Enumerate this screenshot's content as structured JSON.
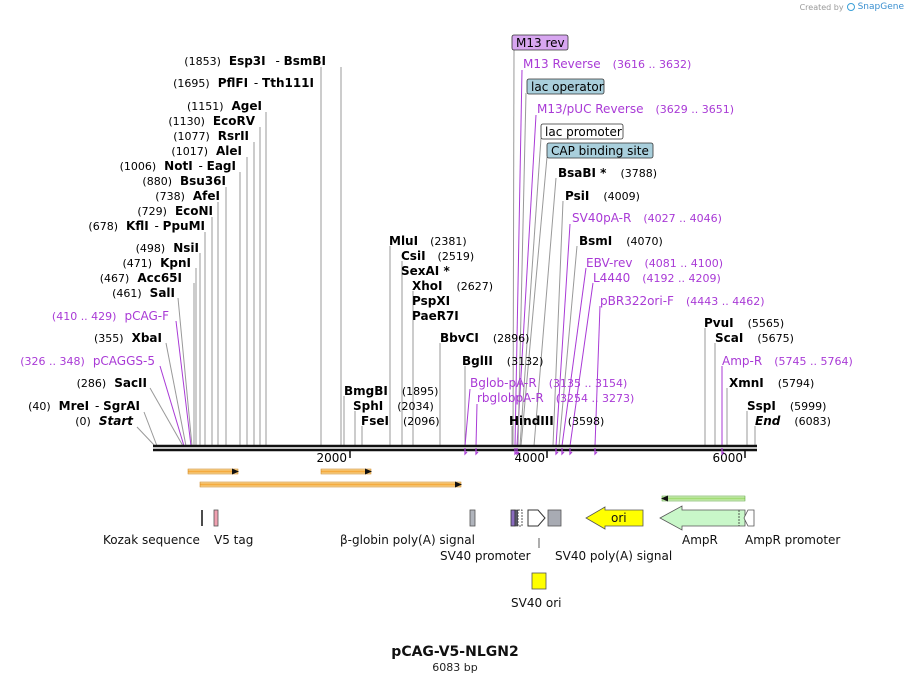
{
  "credit": {
    "prefix": "Created by",
    "brand": "SnapGene"
  },
  "plasmid": {
    "name": "pCAG-V5-NLGN2",
    "length_label": "6083 bp",
    "length": 6083
  },
  "ruler": {
    "ticks": [
      {
        "label": "2000",
        "bp": 2000
      },
      {
        "label": "4000",
        "bp": 4000
      },
      {
        "label": "6000",
        "bp": 6000
      }
    ]
  },
  "sites_left": [
    {
      "pos_label": "(1853)",
      "names": [
        "Esp3I",
        "BsmBI"
      ],
      "bp": 1853
    },
    {
      "pos_label": "(1695)",
      "names": [
        "PflFI",
        "Tth111I"
      ],
      "bp": 1695
    },
    {
      "pos_label": "(1151)",
      "names": [
        "AgeI"
      ],
      "bp": 1151
    },
    {
      "pos_label": "(1130)",
      "names": [
        "EcoRV"
      ],
      "bp": 1130
    },
    {
      "pos_label": "(1077)",
      "names": [
        "RsrII"
      ],
      "bp": 1077
    },
    {
      "pos_label": "(1017)",
      "names": [
        "AleI"
      ],
      "bp": 1017
    },
    {
      "pos_label": "(1006)",
      "names": [
        "NotI",
        "EagI"
      ],
      "bp": 1006
    },
    {
      "pos_label": "(880)",
      "names": [
        "Bsu36I"
      ],
      "bp": 880
    },
    {
      "pos_label": "(738)",
      "names": [
        "AfeI"
      ],
      "bp": 738
    },
    {
      "pos_label": "(729)",
      "names": [
        "EcoNI"
      ],
      "bp": 729
    },
    {
      "pos_label": "(678)",
      "names": [
        "KflI",
        "PpuMI"
      ],
      "bp": 678
    },
    {
      "pos_label": "(498)",
      "names": [
        "NsiI"
      ],
      "bp": 498
    },
    {
      "pos_label": "(471)",
      "names": [
        "KpnI"
      ],
      "bp": 471
    },
    {
      "pos_label": "(467)",
      "names": [
        "Acc65I"
      ],
      "bp": 467
    },
    {
      "pos_label": "(461)",
      "names": [
        "SalI"
      ],
      "bp": 461
    },
    {
      "pos_label": "(355)",
      "names": [
        "XbaI"
      ],
      "bp": 355
    },
    {
      "pos_label": "(286)",
      "names": [
        "SacII"
      ],
      "bp": 286
    },
    {
      "pos_label": "(40)",
      "names": [
        "MreI",
        "SgrAI"
      ],
      "bp": 40
    },
    {
      "pos_label": "(0)",
      "names": [
        "Start"
      ],
      "bp": 0,
      "italic": true
    }
  ],
  "primers_left": [
    {
      "name": "pCAG-F",
      "range": "(410 .. 429)",
      "bp": 410
    },
    {
      "name": "pCAGGS-5",
      "range": "(326 .. 348)",
      "bp": 326
    }
  ],
  "sites_mid": [
    {
      "names": [
        "MluI"
      ],
      "pos_label": "(2381)",
      "bp": 2381
    },
    {
      "names": [
        "CsiI"
      ],
      "pos_label": "(2519)",
      "bp": 2519
    },
    {
      "names": [
        "SexAI *"
      ],
      "pos_label": "",
      "bp": 2519
    },
    {
      "names": [
        "XhoI"
      ],
      "pos_label": "(2627)",
      "bp": 2627
    },
    {
      "names": [
        "PspXI"
      ],
      "pos_label": "",
      "bp": 2627
    },
    {
      "names": [
        "PaeR7I"
      ],
      "pos_label": "",
      "bp": 2627
    },
    {
      "names": [
        "BbvCI"
      ],
      "pos_label": "(2896)",
      "bp": 2896
    },
    {
      "names": [
        "BglII"
      ],
      "pos_label": "(3132)",
      "bp": 3132
    },
    {
      "names": [
        "BmgBI"
      ],
      "pos_label": "(1895)",
      "bp": 1895
    },
    {
      "names": [
        "SphI"
      ],
      "pos_label": "(2034)",
      "bp": 2034
    },
    {
      "names": [
        "FseI"
      ],
      "pos_label": "(2096)",
      "bp": 2096
    },
    {
      "names": [
        "HindIII"
      ],
      "pos_label": "(3598)",
      "bp": 3598
    }
  ],
  "tagged_features": [
    {
      "label": "M13 rev",
      "style": "purple"
    },
    {
      "label": "lac operator",
      "style": "blue"
    },
    {
      "label": "lac promoter",
      "style": "white"
    },
    {
      "label": "CAP binding site",
      "style": "blue"
    }
  ],
  "primers_right": [
    {
      "name": "M13 Reverse",
      "range": "(3616 .. 3632)",
      "bp": 3616
    },
    {
      "name": "M13/pUC Reverse",
      "range": "(3629 .. 3651)",
      "bp": 3629
    },
    {
      "name": "SV40pA-R",
      "range": "(4027 .. 4046)",
      "bp": 4027
    },
    {
      "name": "EBV-rev",
      "range": "(4081 .. 4100)",
      "bp": 4081
    },
    {
      "name": "L4440",
      "range": "(4192 .. 4209)",
      "bp": 4192
    },
    {
      "name": "pBR322ori-F",
      "range": "(4443 .. 4462)",
      "bp": 4443
    },
    {
      "name": "Amp-R",
      "range": "(5745 .. 5764)",
      "bp": 5745
    },
    {
      "name": "Bglob-pA-R",
      "range": "(3135 .. 3154)",
      "bp": 3135
    },
    {
      "name": "rbglobpA-R",
      "range": "(3254 .. 3273)",
      "bp": 3254
    }
  ],
  "sites_right": [
    {
      "names": [
        "BsaBI *"
      ],
      "pos_label": "(3788)",
      "bp": 3788
    },
    {
      "names": [
        "PsiI"
      ],
      "pos_label": "(4009)",
      "bp": 4009
    },
    {
      "names": [
        "BsmI"
      ],
      "pos_label": "(4070)",
      "bp": 4070
    },
    {
      "names": [
        "PvuI"
      ],
      "pos_label": "(5565)",
      "bp": 5565
    },
    {
      "names": [
        "ScaI"
      ],
      "pos_label": "(5675)",
      "bp": 5675
    },
    {
      "names": [
        "XmnI"
      ],
      "pos_label": "(5794)",
      "bp": 5794
    },
    {
      "names": [
        "SspI"
      ],
      "pos_label": "(5999)",
      "bp": 5999
    },
    {
      "names": [
        "End"
      ],
      "pos_label": "(6083)",
      "bp": 6083,
      "italic": true
    }
  ],
  "features": [
    {
      "label": "Kozak sequence"
    },
    {
      "label": "V5 tag"
    },
    {
      "label": "β-globin poly(A) signal"
    },
    {
      "label": "SV40 promoter"
    },
    {
      "label": "SV40 poly(A) signal"
    },
    {
      "label": "ori"
    },
    {
      "label": "AmpR"
    },
    {
      "label": "AmpR promoter"
    },
    {
      "label": "SV40 ori"
    }
  ],
  "colors": {
    "backbone": "#111111",
    "primer": "#a93ad6",
    "orf": "#f3a432",
    "ori": "#ffff00",
    "ampr": "#c9f7c9",
    "tag_purple": "#d7a6f0",
    "tag_blue": "#a9cfdc"
  }
}
